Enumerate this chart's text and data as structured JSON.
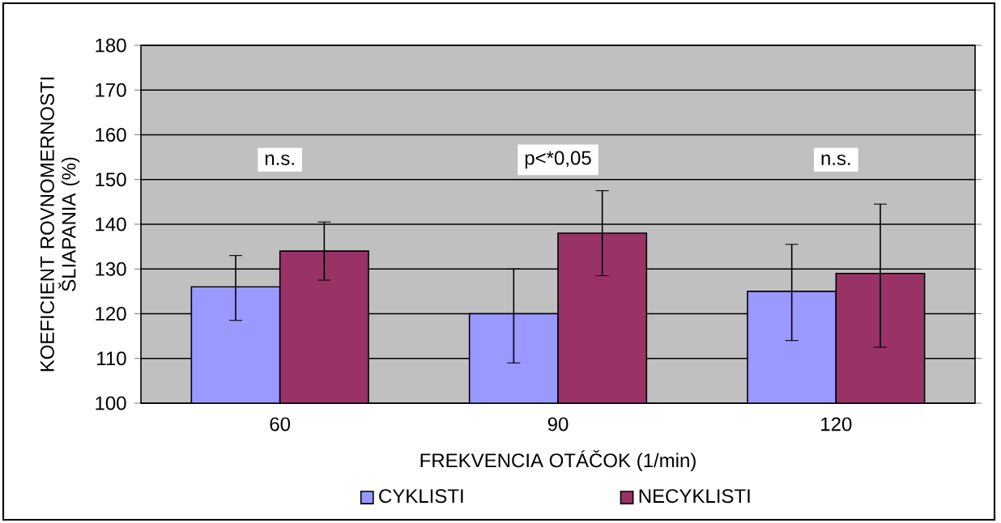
{
  "chart_data": {
    "type": "bar",
    "xlabel": "FREKVENCIA OTÁČOK (1/min)",
    "ylabel": "KOEFICIENT ROVNOMERNOSTI ŠLIAPANIA (%)",
    "categories": [
      "60",
      "90",
      "120"
    ],
    "series": [
      {
        "name": "CYKLISTI",
        "color": "#9999ff",
        "values": [
          126,
          120,
          125
        ],
        "errors": [
          [
            118.5,
            133
          ],
          [
            109,
            130
          ],
          [
            114,
            135.5
          ]
        ]
      },
      {
        "name": "NECYKLISTI",
        "color": "#993366",
        "values": [
          134,
          138,
          129
        ],
        "errors": [
          [
            127.5,
            140.5
          ],
          [
            128.5,
            147.5
          ],
          [
            112.5,
            144.5
          ]
        ]
      }
    ],
    "ylim": [
      100,
      180
    ],
    "yticks": [
      100,
      110,
      120,
      130,
      140,
      150,
      160,
      170,
      180
    ],
    "annotations": [
      "n.s.",
      "p<*0,05",
      "n.s."
    ],
    "grid": "y",
    "legend": "bottom"
  }
}
